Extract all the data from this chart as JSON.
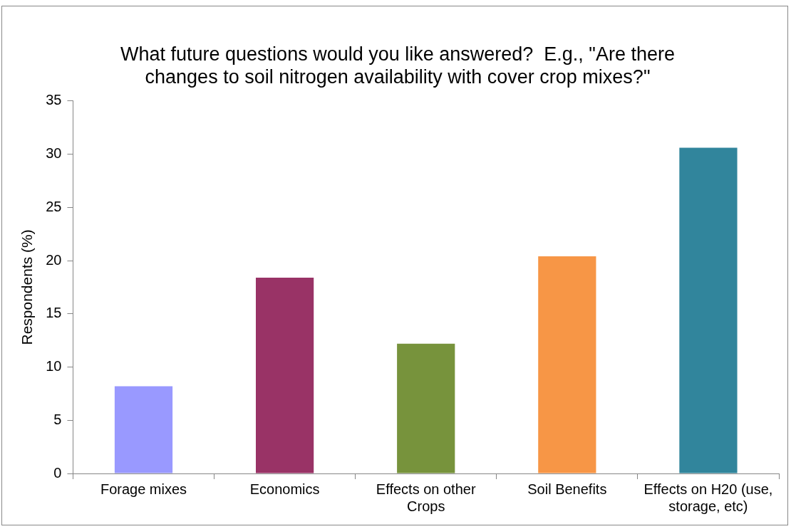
{
  "chart_data": {
    "type": "bar",
    "title": "What future questions would you like answered?  E.g., \"Are there changes to soil nitrogen availability with cover crop mixes?\"",
    "ylabel": "Respondents (%)",
    "categories": [
      "Forage mixes",
      "Economics",
      "Effects on other Crops",
      "Soil Benefits",
      "Effects on H20 (use, storage, etc)"
    ],
    "values": [
      8.2,
      18.4,
      12.2,
      20.4,
      30.6
    ],
    "colors": [
      "#9999ff",
      "#993366",
      "#77933c",
      "#f79646",
      "#31859c"
    ],
    "ylim": [
      0,
      35
    ],
    "yticks": [
      0,
      5,
      10,
      15,
      20,
      25,
      30,
      35
    ],
    "grid": false,
    "legend": false
  }
}
